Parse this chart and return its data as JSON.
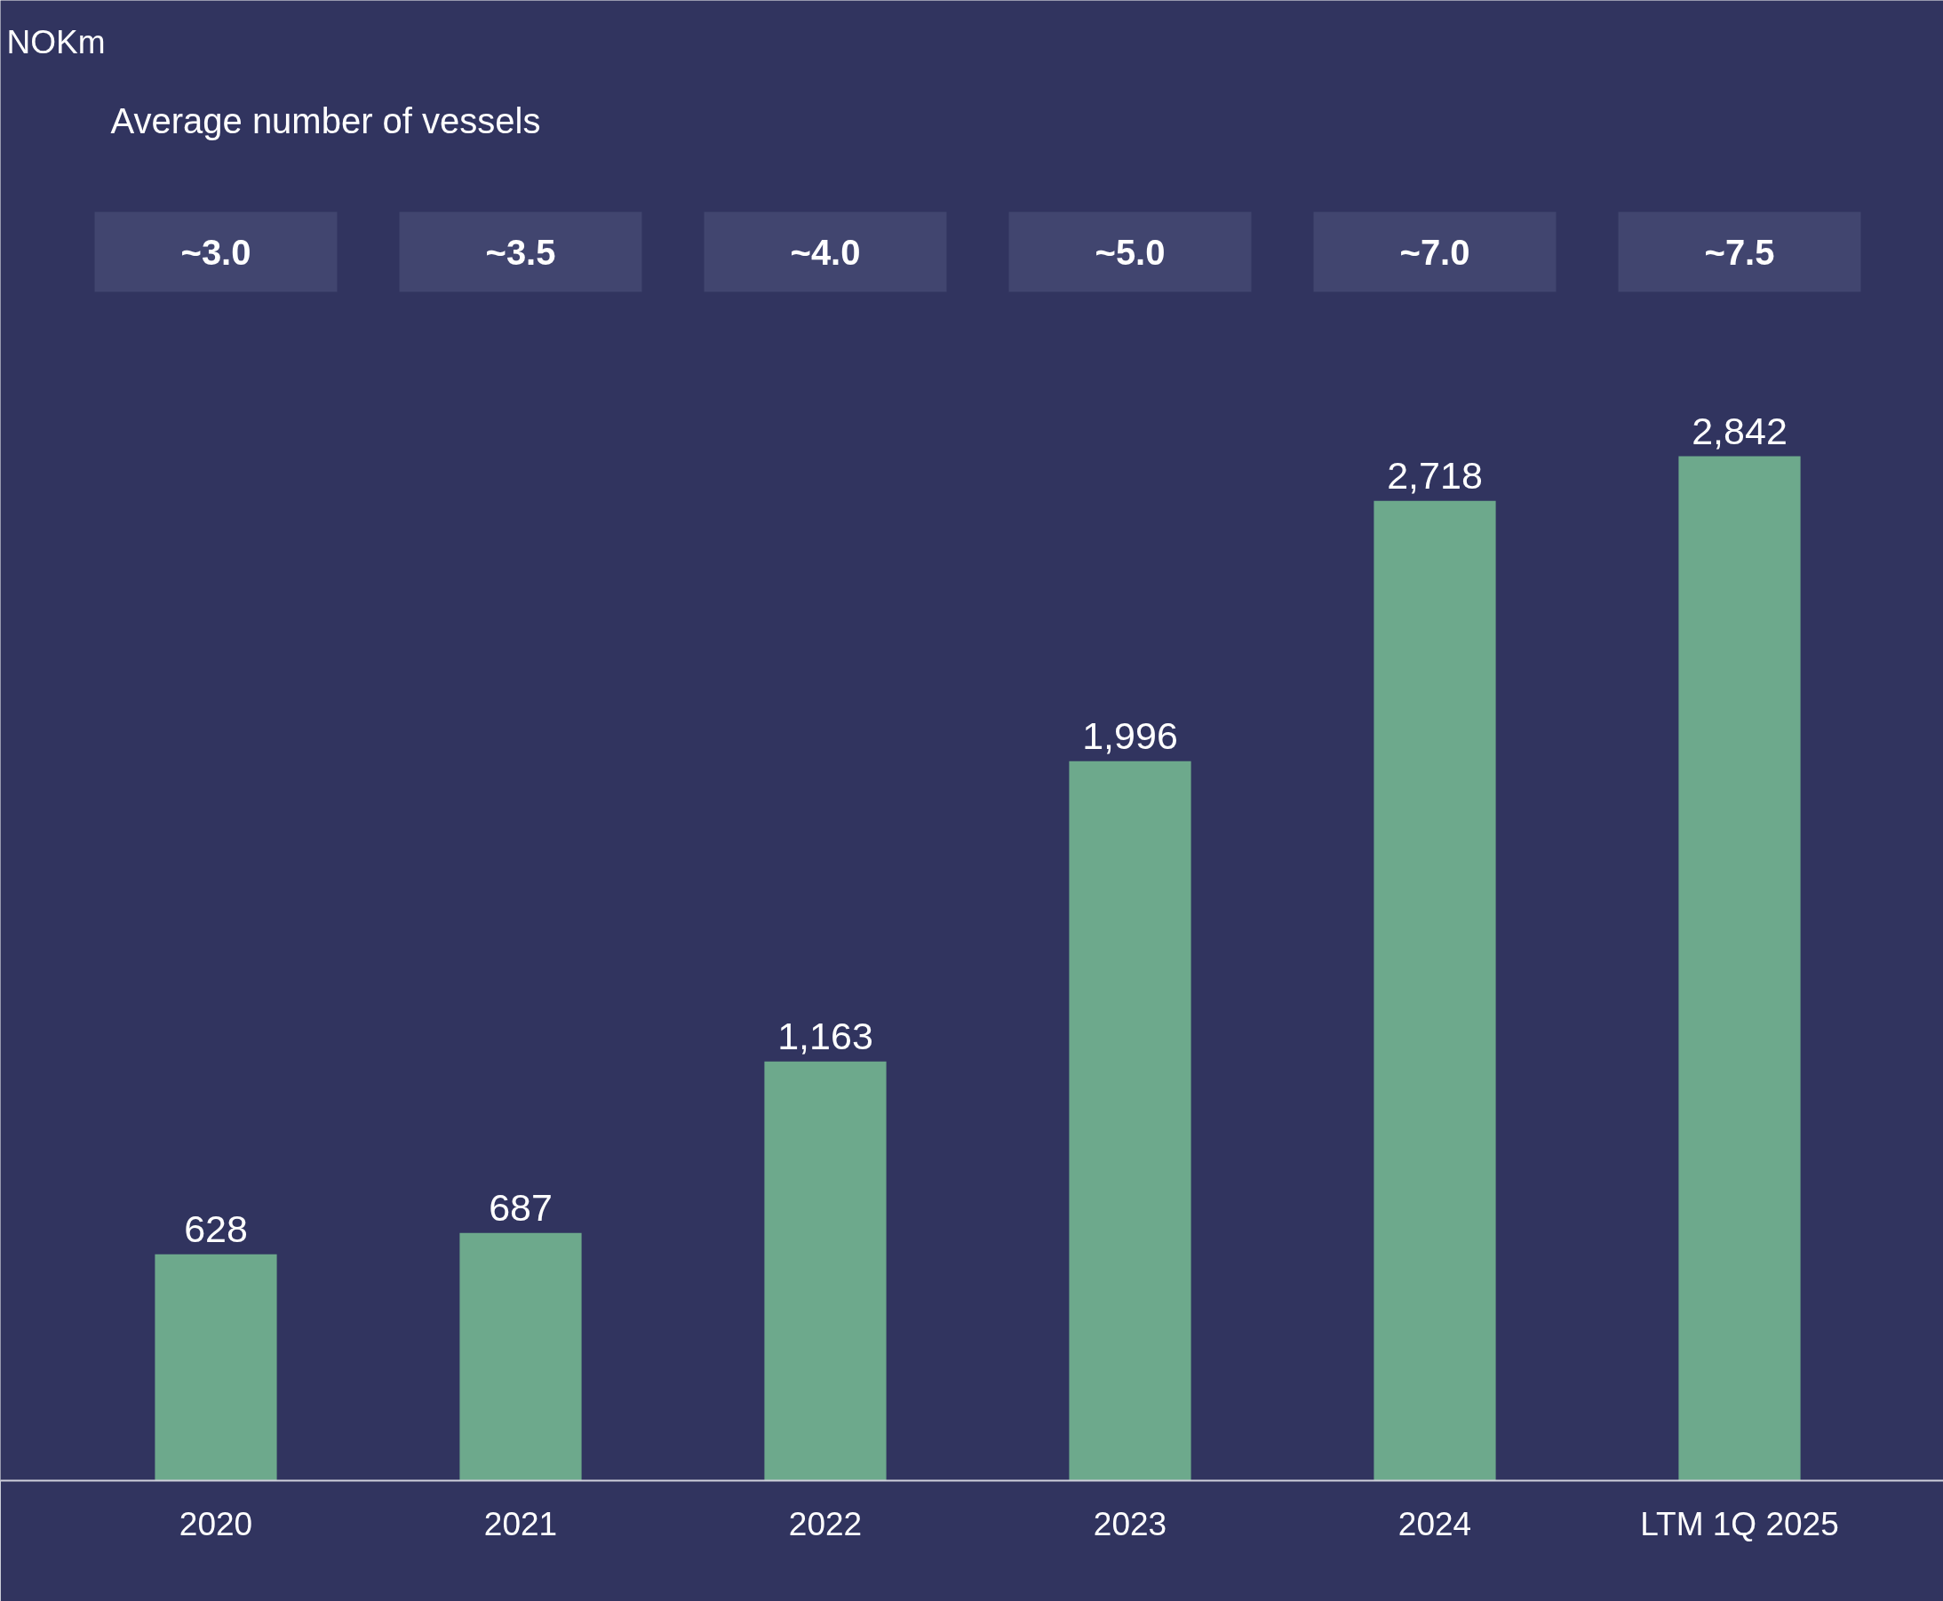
{
  "chart_data": {
    "type": "bar",
    "categories": [
      "2020",
      "2021",
      "2022",
      "2023",
      "2024",
      "LTM 1Q 2025"
    ],
    "values": [
      628,
      687,
      1163,
      1996,
      2718,
      2842
    ],
    "value_labels": [
      "628",
      "687",
      "1,163",
      "1,996",
      "2,718",
      "2,842"
    ],
    "color": "#6da98c",
    "grid": false,
    "annotations": [
      "NOKm",
      "Average number of vessels",
      "~3.0",
      "~3.5",
      "~4.0",
      "~5.0",
      "~7.0",
      "~7.5"
    ]
  }
}
